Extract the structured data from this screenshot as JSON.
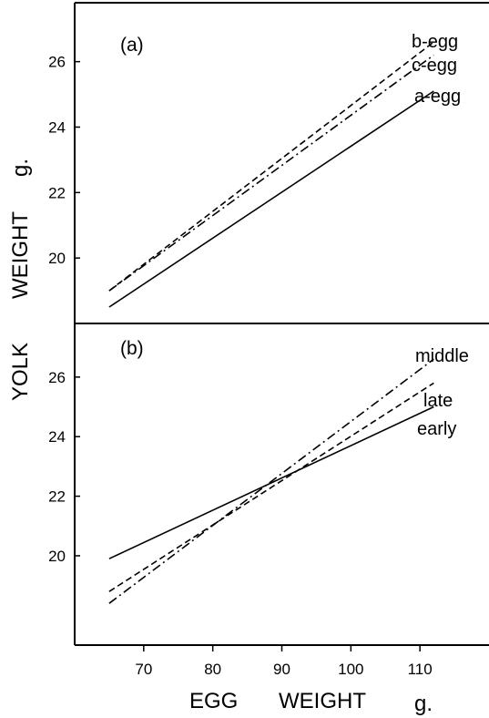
{
  "chart_data": [
    {
      "type": "line",
      "panel_label": "(a)",
      "xlim": [
        60,
        120
      ],
      "ylim": [
        18,
        27.8
      ],
      "yticks": [
        20,
        22,
        24,
        26
      ],
      "series": [
        {
          "name": "b-egg",
          "style": "dashed",
          "x": [
            65,
            112
          ],
          "y": [
            19.0,
            26.6
          ]
        },
        {
          "name": "c-egg",
          "style": "dashdot",
          "x": [
            65,
            112
          ],
          "y": [
            19.0,
            26.2
          ]
        },
        {
          "name": "a-egg",
          "style": "solid",
          "x": [
            65,
            112
          ],
          "y": [
            18.5,
            25.1
          ]
        }
      ]
    },
    {
      "type": "line",
      "panel_label": "(b)",
      "xlim": [
        60,
        120
      ],
      "ylim": [
        17,
        27.8
      ],
      "yticks": [
        20,
        22,
        24,
        26
      ],
      "xticks": [
        70,
        80,
        90,
        100,
        110
      ],
      "series": [
        {
          "name": "middle",
          "style": "dashdot",
          "x": [
            65,
            112
          ],
          "y": [
            18.4,
            26.6
          ]
        },
        {
          "name": "late",
          "style": "dashed",
          "x": [
            65,
            112
          ],
          "y": [
            18.8,
            25.8
          ]
        },
        {
          "name": "early",
          "style": "solid",
          "x": [
            65,
            112
          ],
          "y": [
            19.9,
            25.0
          ]
        }
      ]
    }
  ],
  "axes": {
    "ylabel_main": "YOLK",
    "ylabel_sub": "WEIGHT",
    "ylabel_unit": "g.",
    "xlabel_main": "EGG",
    "xlabel_sub": "WEIGHT",
    "xlabel_unit": "g."
  }
}
